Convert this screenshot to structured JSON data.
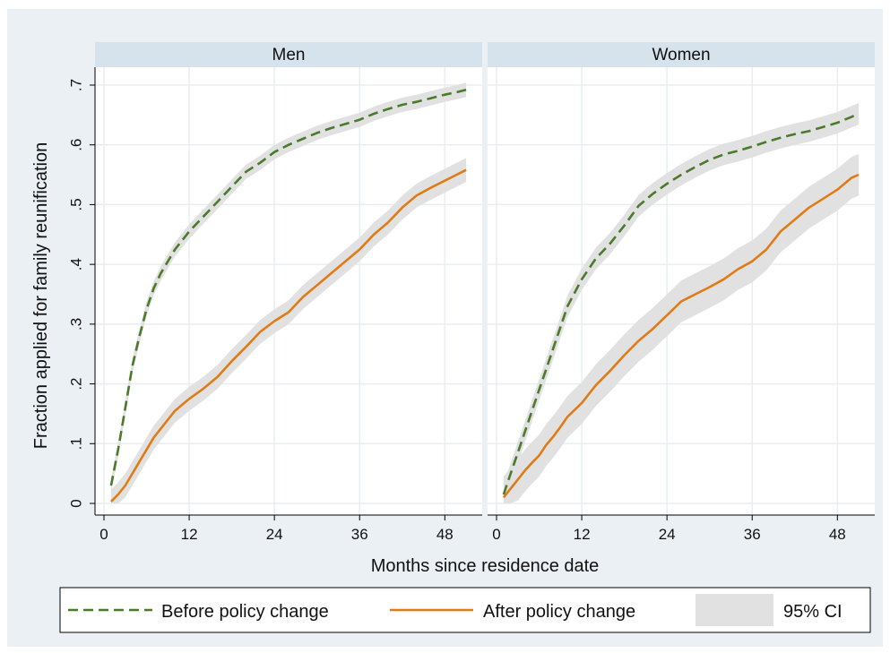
{
  "chart_data": {
    "type": "line",
    "xlabel": "Months since residence date",
    "ylabel": "Fraction applied for family reunification",
    "xlim": [
      0,
      52
    ],
    "ylim": [
      0,
      0.7
    ],
    "x_ticks": [
      0,
      12,
      24,
      36,
      48
    ],
    "y_ticks": [
      0,
      0.1,
      0.2,
      0.3,
      0.4,
      0.5,
      0.6,
      0.7
    ],
    "y_tick_labels": [
      "0",
      ".1",
      ".2",
      ".3",
      ".4",
      ".5",
      ".6",
      ".7"
    ],
    "grid": true,
    "legend": {
      "position": "bottom",
      "entries": [
        "Before policy change",
        "After policy change",
        "95% CI"
      ]
    },
    "colors": {
      "before": "#4a7a2a",
      "after": "#e07b16",
      "ci": "#e1e1e1",
      "panel_header": "#d7e3ec",
      "outer_background": "#ebf0f4"
    },
    "panels": [
      {
        "title": "Men",
        "series": [
          {
            "name": "Before policy change",
            "style": "dashed",
            "x": [
              1,
              2,
              3,
              4,
              5,
              6,
              7,
              8,
              9,
              10,
              12,
              14,
              16,
              18,
              20,
              22,
              24,
              26,
              28,
              30,
              32,
              34,
              36,
              38,
              40,
              42,
              44,
              46,
              48,
              50,
              51
            ],
            "y": [
              0.03,
              0.09,
              0.16,
              0.23,
              0.28,
              0.325,
              0.36,
              0.385,
              0.405,
              0.425,
              0.455,
              0.48,
              0.505,
              0.53,
              0.555,
              0.57,
              0.588,
              0.6,
              0.61,
              0.62,
              0.628,
              0.635,
              0.642,
              0.652,
              0.66,
              0.667,
              0.672,
              0.678,
              0.684,
              0.689,
              0.692
            ],
            "ci_halfwidth": 0.012
          },
          {
            "name": "After policy change",
            "style": "solid",
            "x": [
              1,
              2,
              3,
              4,
              5,
              6,
              7,
              8,
              9,
              10,
              12,
              14,
              16,
              18,
              20,
              22,
              24,
              26,
              28,
              30,
              32,
              34,
              36,
              38,
              40,
              42,
              44,
              46,
              48,
              50,
              51
            ],
            "y": [
              0.003,
              0.015,
              0.03,
              0.05,
              0.07,
              0.09,
              0.11,
              0.125,
              0.14,
              0.155,
              0.175,
              0.192,
              0.212,
              0.238,
              0.262,
              0.287,
              0.305,
              0.32,
              0.345,
              0.365,
              0.385,
              0.405,
              0.425,
              0.45,
              0.47,
              0.495,
              0.515,
              0.528,
              0.54,
              0.552,
              0.558
            ],
            "ci_halfwidth": 0.02
          }
        ]
      },
      {
        "title": "Women",
        "series": [
          {
            "name": "Before policy change",
            "style": "dashed",
            "x": [
              1,
              2,
              3,
              4,
              5,
              6,
              7,
              8,
              9,
              10,
              12,
              14,
              16,
              18,
              20,
              22,
              24,
              26,
              28,
              30,
              32,
              34,
              36,
              38,
              40,
              42,
              44,
              46,
              48,
              50,
              51
            ],
            "y": [
              0.015,
              0.05,
              0.085,
              0.12,
              0.155,
              0.19,
              0.225,
              0.26,
              0.295,
              0.33,
              0.375,
              0.41,
              0.435,
              0.465,
              0.498,
              0.518,
              0.535,
              0.55,
              0.563,
              0.575,
              0.584,
              0.59,
              0.597,
              0.605,
              0.612,
              0.618,
              0.623,
              0.63,
              0.637,
              0.647,
              0.652
            ],
            "ci_halfwidth": 0.018
          },
          {
            "name": "After policy change",
            "style": "solid",
            "x": [
              1,
              2,
              3,
              4,
              5,
              6,
              7,
              8,
              9,
              10,
              12,
              14,
              16,
              18,
              20,
              22,
              24,
              26,
              28,
              30,
              32,
              34,
              36,
              38,
              40,
              42,
              44,
              46,
              48,
              50,
              51
            ],
            "y": [
              0.01,
              0.025,
              0.04,
              0.055,
              0.068,
              0.08,
              0.098,
              0.112,
              0.128,
              0.145,
              0.168,
              0.198,
              0.222,
              0.248,
              0.272,
              0.292,
              0.315,
              0.338,
              0.35,
              0.362,
              0.375,
              0.392,
              0.405,
              0.425,
              0.455,
              0.475,
              0.495,
              0.51,
              0.525,
              0.545,
              0.55
            ],
            "ci_halfwidth": 0.035
          }
        ]
      }
    ]
  }
}
